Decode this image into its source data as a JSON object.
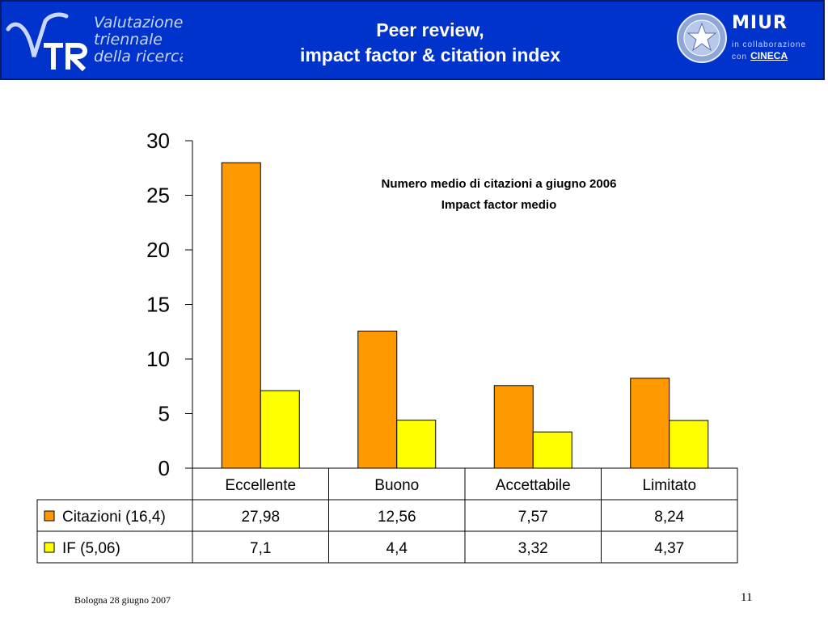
{
  "header": {
    "vtr_lines": [
      "Valutazione",
      "triennale",
      "della ricerca"
    ],
    "title_lines": [
      "Peer review,",
      "impact factor & citation index"
    ],
    "miur_title": "MIUR",
    "miur_collab": "in collaborazione",
    "miur_con": "con",
    "cineca": "CINECA"
  },
  "colors": {
    "header_bg": "#0033cc",
    "citazioni": "#ff9900",
    "if": "#ffff00"
  },
  "chart_data": {
    "type": "bar",
    "title": "",
    "annotation_lines": [
      "Numero medio di citazioni a giugno 2006",
      "Impact factor medio"
    ],
    "categories": [
      "Eccellente",
      "Buono",
      "Accettabile",
      "Limitato"
    ],
    "series": [
      {
        "name": "Citazioni (16,4)",
        "values": [
          27.98,
          12.56,
          7.57,
          8.24
        ],
        "labels": [
          "27,98",
          "12,56",
          "7,57",
          "8,24"
        ],
        "color": "#ff9900"
      },
      {
        "name": "IF (5,06)",
        "values": [
          7.1,
          4.4,
          3.32,
          4.37
        ],
        "labels": [
          "7,1",
          "4,4",
          "3,32",
          "4,37"
        ],
        "color": "#ffff00"
      }
    ],
    "yticks": [
      0,
      5,
      10,
      15,
      20,
      25,
      30
    ],
    "ylim": [
      0,
      30
    ],
    "grid": false,
    "legend": "data-table"
  },
  "footer": {
    "left": "Bologna 28 giugno 2007",
    "page": "11"
  }
}
